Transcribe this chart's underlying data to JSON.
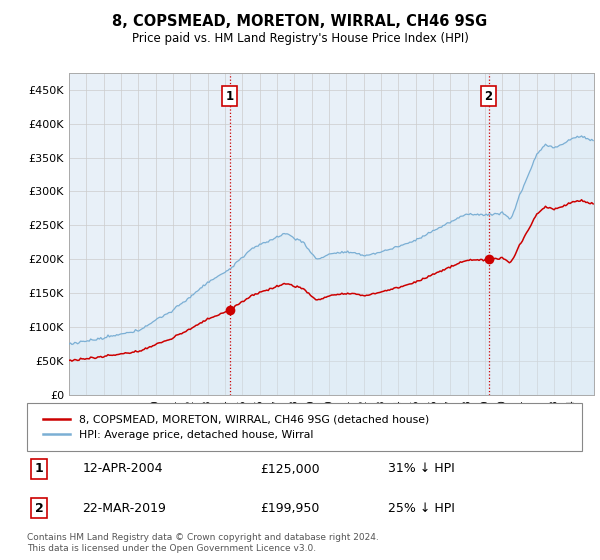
{
  "title": "8, COPSMEAD, MORETON, WIRRAL, CH46 9SG",
  "subtitle": "Price paid vs. HM Land Registry's House Price Index (HPI)",
  "xlim_start": 1995.0,
  "xlim_end": 2025.3,
  "ylim": [
    0,
    475000
  ],
  "yticks": [
    0,
    50000,
    100000,
    150000,
    200000,
    250000,
    300000,
    350000,
    400000,
    450000
  ],
  "ytick_labels": [
    "£0",
    "£50K",
    "£100K",
    "£150K",
    "£200K",
    "£250K",
    "£300K",
    "£350K",
    "£400K",
    "£450K"
  ],
  "sale1_x": 2004.28,
  "sale1_y": 125000,
  "sale2_x": 2019.22,
  "sale2_y": 199950,
  "legend_line1": "8, COPSMEAD, MORETON, WIRRAL, CH46 9SG (detached house)",
  "legend_line2": "HPI: Average price, detached house, Wirral",
  "annotation1_date": "12-APR-2004",
  "annotation1_price": "£125,000",
  "annotation1_hpi": "31% ↓ HPI",
  "annotation2_date": "22-MAR-2019",
  "annotation2_price": "£199,950",
  "annotation2_hpi": "25% ↓ HPI",
  "footer": "Contains HM Land Registry data © Crown copyright and database right 2024.\nThis data is licensed under the Open Government Licence v3.0.",
  "sale_color": "#cc0000",
  "hpi_color": "#7bafd4",
  "hpi_fill": "#d6e8f5",
  "background_color": "#ffffff",
  "grid_color": "#cccccc"
}
